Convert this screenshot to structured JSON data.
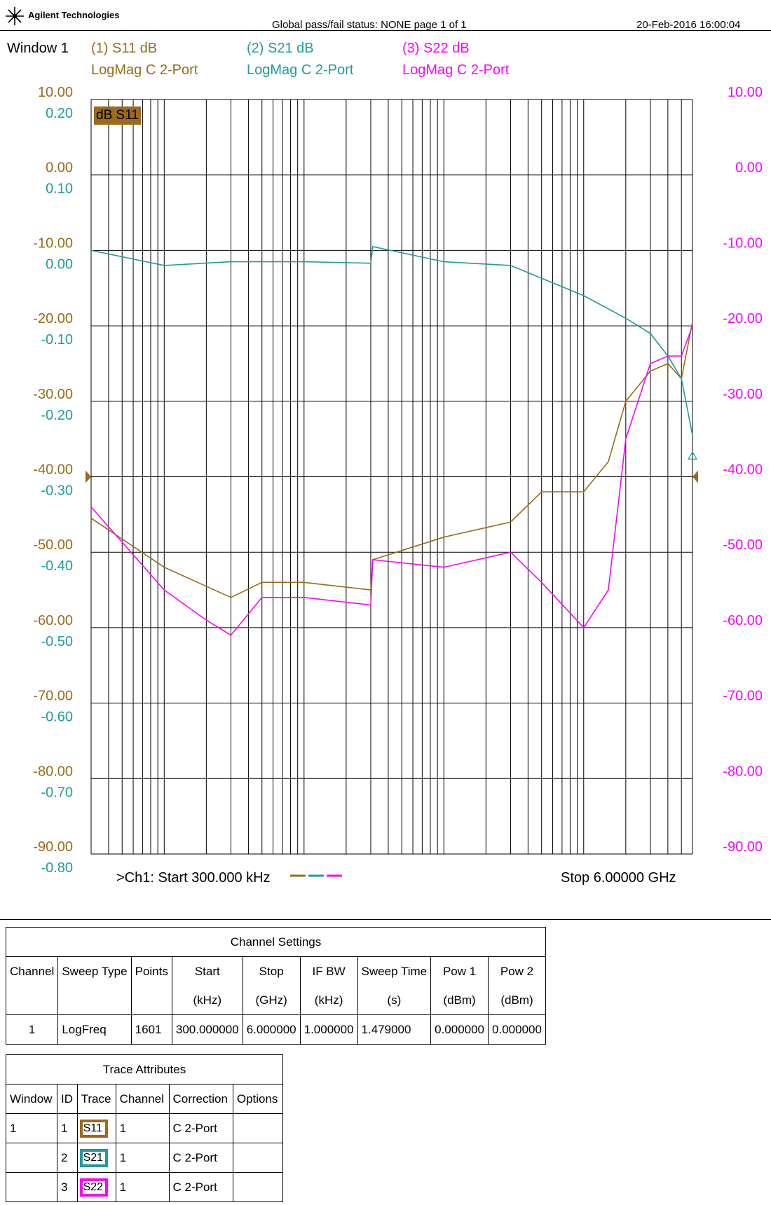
{
  "header": {
    "brand": "Agilent Technologies",
    "status": "Global pass/fail status: NONE    page  1 of  1",
    "datetime": "20-Feb-2016   16:00:04"
  },
  "window": {
    "label": "Window 1",
    "traces": [
      {
        "title": "(1) S11 dB",
        "format": "LogMag C  2-Port",
        "color": "#9b6a1a"
      },
      {
        "title": "(2) S21 dB",
        "format": "LogMag C  2-Port",
        "color": "#1f9b9b"
      },
      {
        "title": "(3) S22 dB",
        "format": "LogMag C  2-Port",
        "color": "#ff00ff"
      }
    ],
    "active_trace_badge": "dB S11",
    "footer_left": ">Ch1: Start  300.000 kHz",
    "footer_right": "Stop  6.00000 GHz"
  },
  "chart_data": {
    "type": "line",
    "x_scale": "log",
    "xlim_hz": [
      300000,
      6000000000
    ],
    "grid": true,
    "axes": {
      "s11_left_ticks": [
        "10.00",
        "0.00",
        "-10.00",
        "-20.00",
        "-30.00",
        "-40.00",
        "-50.00",
        "-60.00",
        "-70.00",
        "-80.00",
        "-90.00"
      ],
      "s21_left_ticks": [
        "0.20",
        "0.10",
        "0.00",
        "-0.10",
        "-0.20",
        "-0.30",
        "-0.40",
        "-0.50",
        "-0.60",
        "-0.70",
        "-0.80"
      ],
      "s22_right_ticks": [
        "10.00",
        "0.00",
        "-10.00",
        "-20.00",
        "-30.00",
        "-40.00",
        "-50.00",
        "-60.00",
        "-70.00",
        "-80.00",
        "-90.00"
      ],
      "s11_ylim": [
        -90,
        10
      ],
      "s21_ylim": [
        -0.8,
        0.2
      ],
      "s22_ylim": [
        -90,
        10
      ],
      "reference_level_db": -40
    },
    "series": [
      {
        "name": "S11",
        "color": "#9b6a1a",
        "x": [
          300000,
          1000000,
          3000000,
          5000000,
          10000000,
          30000000,
          31000000,
          100000000,
          300000000,
          500000000,
          1000000000,
          1500000000,
          2000000000,
          3000000000,
          4000000000,
          5000000000,
          6000000000
        ],
        "y": [
          -45.5,
          -52,
          -56,
          -54,
          -54,
          -55,
          -51,
          -48,
          -46,
          -42,
          -42,
          -38,
          -30,
          -26,
          -25,
          -27,
          -19.5
        ]
      },
      {
        "name": "S21",
        "color": "#1f9b9b",
        "x": [
          300000,
          1000000,
          3000000,
          10000000,
          30000000,
          31000000,
          100000000,
          300000000,
          1000000000,
          2000000000,
          3000000000,
          4000000000,
          5000000000,
          6000000000
        ],
        "y": [
          0.0,
          -0.02,
          -0.015,
          -0.015,
          -0.017,
          0.005,
          -0.015,
          -0.02,
          -0.06,
          -0.09,
          -0.11,
          -0.14,
          -0.17,
          -0.245
        ]
      },
      {
        "name": "S22",
        "color": "#ff00ff",
        "x": [
          300000,
          1000000,
          2000000,
          3000000,
          5000000,
          10000000,
          30000000,
          31000000,
          100000000,
          300000000,
          500000000,
          1000000000,
          1500000000,
          2000000000,
          3000000000,
          4000000000,
          5000000000,
          6000000000
        ],
        "y": [
          -44,
          -55,
          -59,
          -61,
          -56,
          -56,
          -57,
          -51,
          -52,
          -50,
          -54,
          -60,
          -55,
          -35,
          -25,
          -24,
          -24,
          -20
        ]
      }
    ]
  },
  "channel_settings": {
    "title": "Channel Settings",
    "headers": [
      [
        "Channel",
        ""
      ],
      [
        "Sweep Type",
        ""
      ],
      [
        "Points",
        ""
      ],
      [
        "Start",
        "(kHz)"
      ],
      [
        "Stop",
        "(GHz)"
      ],
      [
        "IF BW",
        "(kHz)"
      ],
      [
        "Sweep Time",
        "(s)"
      ],
      [
        "Pow 1",
        "(dBm)"
      ],
      [
        "Pow 2",
        "(dBm)"
      ]
    ],
    "row": [
      "1",
      "LogFreq",
      "1601",
      "300.000000",
      "6.000000",
      "1.000000",
      "1.479000",
      "0.000000",
      "0.000000"
    ]
  },
  "trace_attributes": {
    "title": "Trace Attributes",
    "headers": [
      "Window",
      "ID",
      "Trace",
      "Channel",
      "Correction",
      "Options"
    ],
    "rows": [
      {
        "window": "1",
        "id": "1",
        "trace": "S11",
        "channel": "1",
        "correction": "C 2-Port",
        "options": "",
        "color": "#9b6a1a"
      },
      {
        "window": "",
        "id": "2",
        "trace": "S21",
        "channel": "1",
        "correction": "C 2-Port",
        "options": "",
        "color": "#1f9b9b"
      },
      {
        "window": "",
        "id": "3",
        "trace": "S22",
        "channel": "1",
        "correction": "C 2-Port",
        "options": "",
        "color": "#ff00ff"
      }
    ]
  }
}
